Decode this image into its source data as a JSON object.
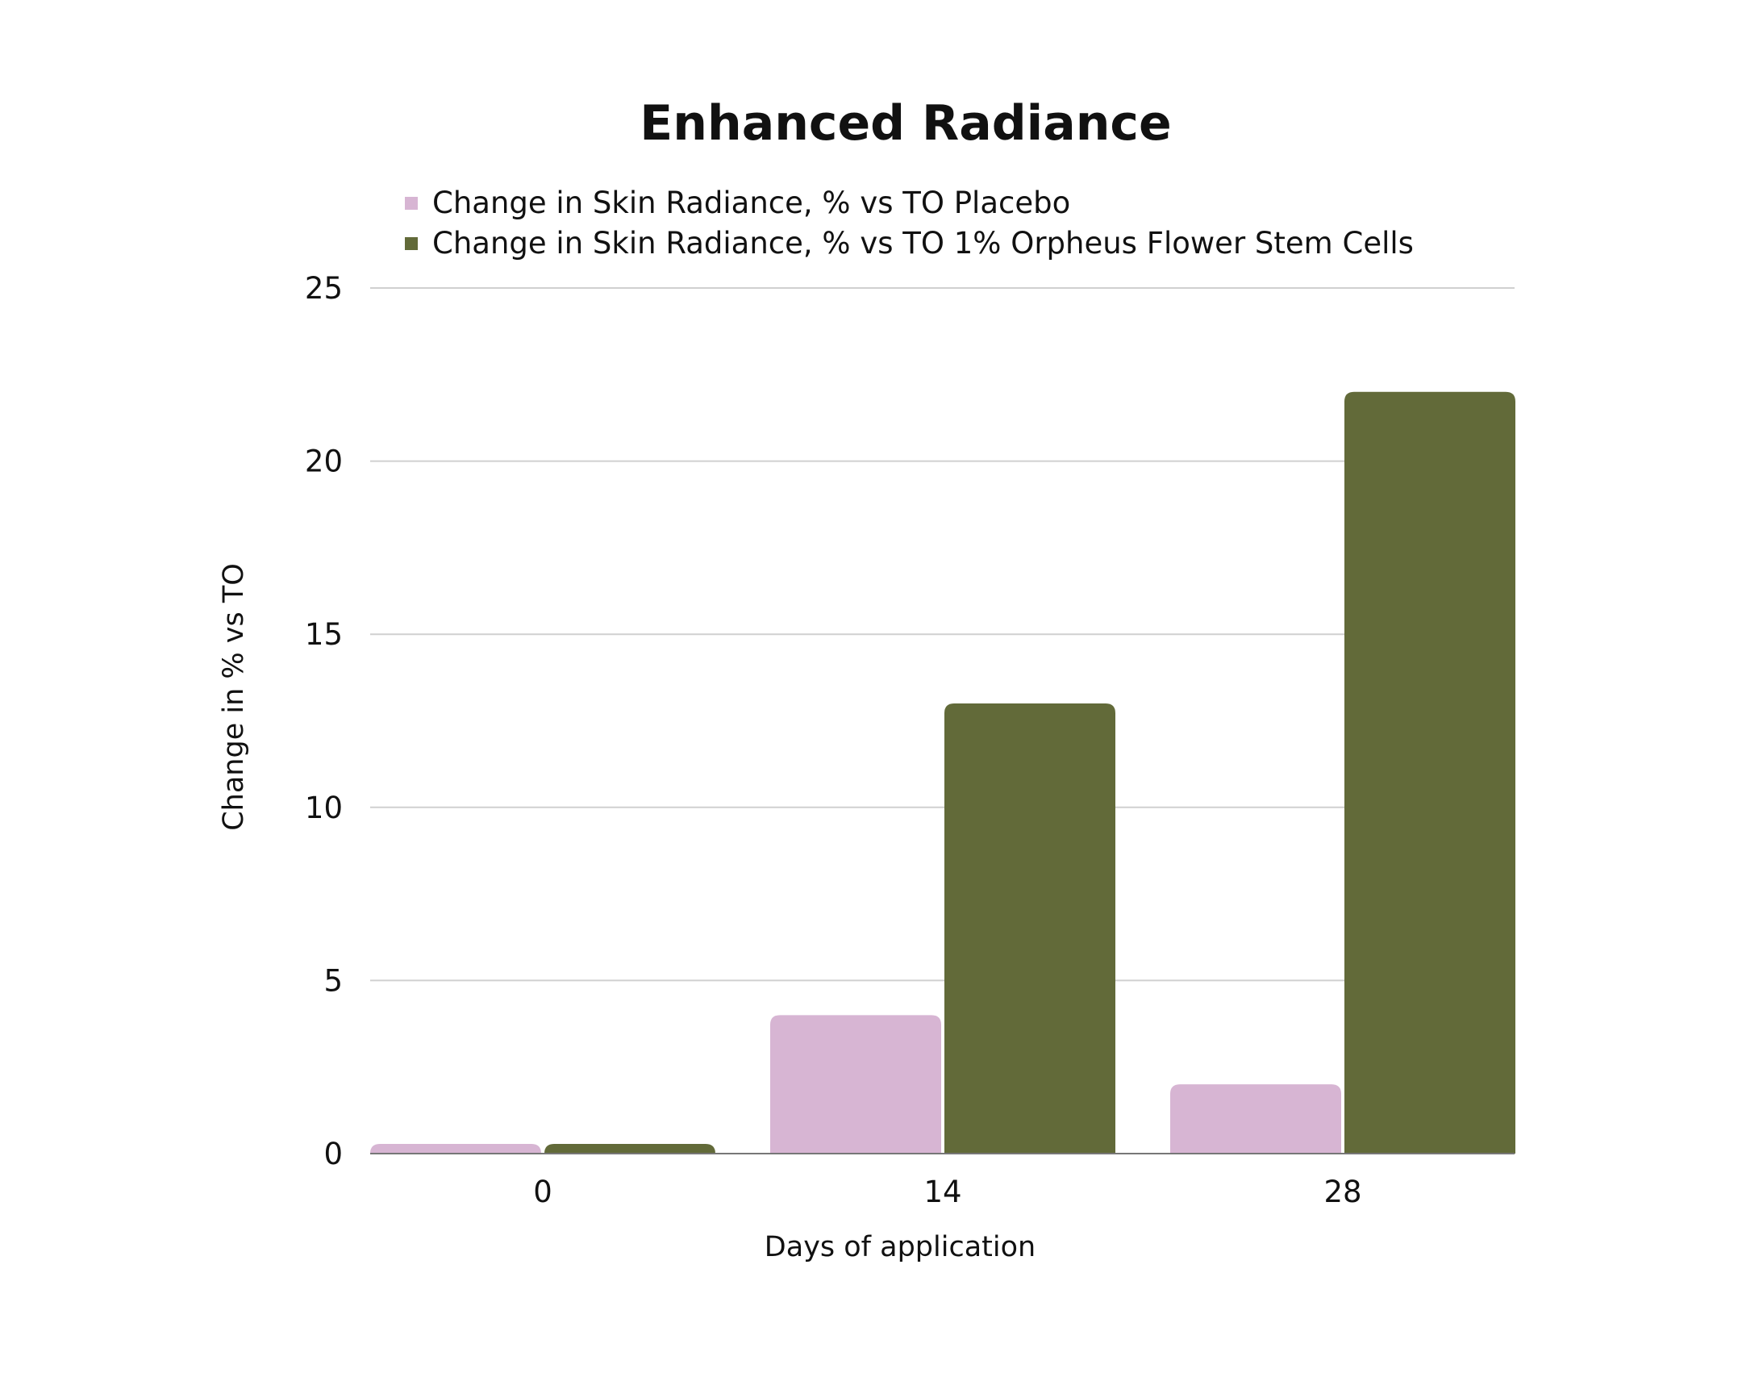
{
  "chart_data": {
    "type": "bar",
    "title": "Enhanced Radiance",
    "categories": [
      "0",
      "14",
      "28"
    ],
    "series": [
      {
        "name": "Change in Skin Radiance, % vs TO Placebo",
        "color": "#d7b5d3",
        "values": [
          0,
          4,
          2
        ]
      },
      {
        "name": "Change in Skin Radiance, % vs TO 1% Orpheus Flower Stem Cells",
        "color": "#626a39",
        "values": [
          0,
          13,
          22
        ]
      }
    ],
    "xlabel": "Days of application",
    "ylabel": "Change in % vs TO",
    "ylim": [
      0,
      25
    ],
    "yticks": [
      "0",
      "5",
      "10",
      "15",
      "20",
      "25"
    ],
    "grid": true,
    "legend_position": "top-left"
  }
}
